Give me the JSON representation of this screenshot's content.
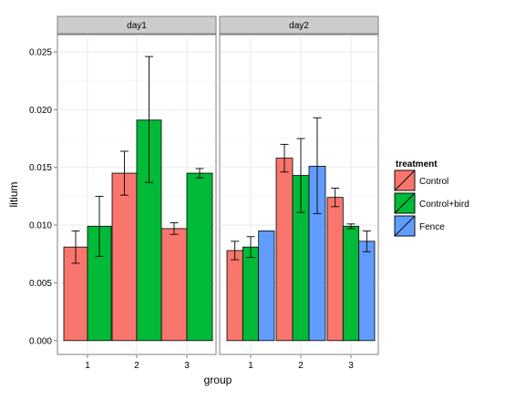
{
  "chart_data": {
    "type": "bar",
    "facet_by": "day",
    "x_label": "group",
    "y_label": "litium",
    "y_range": [
      -0.0012,
      0.0265
    ],
    "y_ticks": [
      0.0,
      0.005,
      0.01,
      0.015,
      0.02,
      0.025
    ],
    "y_tick_labels": [
      "0.000",
      "0.005",
      "0.010",
      "0.015",
      "0.020",
      "0.025"
    ],
    "categories": [
      "1",
      "2",
      "3"
    ],
    "grid": true,
    "legend": {
      "title": "treatment",
      "position": "right",
      "items": [
        {
          "name": "Control",
          "color": "#F8766D"
        },
        {
          "name": "Control+bird",
          "color": "#00BA38"
        },
        {
          "name": "Fence",
          "color": "#619CFF"
        }
      ]
    },
    "panels": [
      {
        "title": "day1",
        "series": [
          {
            "name": "Control",
            "values": [
              0.0081,
              0.0145,
              0.0097
            ],
            "error_low": [
              0.0067,
              0.0126,
              0.0092
            ],
            "error_high": [
              0.0095,
              0.0164,
              0.0102
            ]
          },
          {
            "name": "Control+bird",
            "values": [
              0.0099,
              0.0191,
              0.0145
            ],
            "error_low": [
              0.0073,
              0.0137,
              0.0141
            ],
            "error_high": [
              0.0125,
              0.0246,
              0.0149
            ]
          }
        ]
      },
      {
        "title": "day2",
        "series": [
          {
            "name": "Control",
            "values": [
              0.0078,
              0.0158,
              0.0124
            ],
            "error_low": [
              0.007,
              0.0146,
              0.0116
            ],
            "error_high": [
              0.0086,
              0.017,
              0.0132
            ]
          },
          {
            "name": "Control+bird",
            "values": [
              0.0081,
              0.0143,
              0.0099
            ],
            "error_low": [
              0.0072,
              0.0111,
              0.0097
            ],
            "error_high": [
              0.009,
              0.0175,
              0.0101
            ]
          },
          {
            "name": "Fence",
            "values": [
              0.0095,
              0.0151,
              0.0086
            ],
            "error_low": null,
            "error_high": null
          },
          {
            "name": "Fence",
            "values": [
              null,
              null,
              null
            ],
            "error_low": [
              null,
              0.011,
              0.0077
            ],
            "error_high": [
              null,
              0.0193,
              0.0095
            ]
          }
        ]
      }
    ]
  }
}
